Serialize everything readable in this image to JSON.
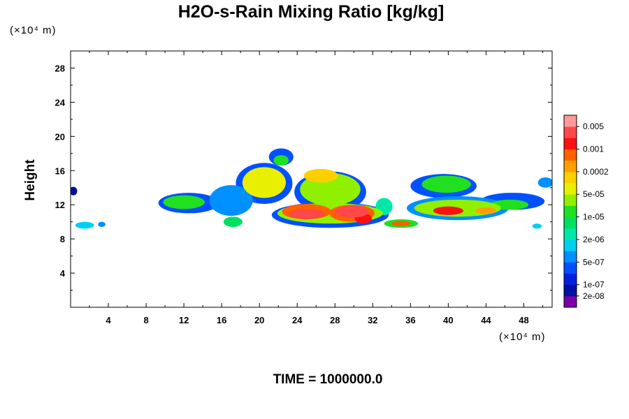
{
  "chart_data": {
    "type": "heatmap",
    "title": "H2O-s-Rain Mixing Ratio [kg/kg]",
    "ylabel": "Height",
    "xlabel": "",
    "x_unit": "(×10⁴ m)",
    "y_unit": "(×10⁴ m)",
    "xlim": [
      0,
      51
    ],
    "ylim": [
      0,
      30
    ],
    "xticks": [
      4,
      8,
      12,
      16,
      20,
      24,
      28,
      32,
      36,
      40,
      44,
      48
    ],
    "yticks": [
      4,
      8,
      12,
      16,
      20,
      24,
      28
    ],
    "grid": false,
    "footer": "TIME = 1000000.0",
    "colorbar": {
      "position": "right",
      "colors": [
        "#7a00a8",
        "#0010a0",
        "#0020e0",
        "#0050ff",
        "#0090ff",
        "#00d0f0",
        "#00e8a8",
        "#00e060",
        "#20e020",
        "#90f000",
        "#e8f000",
        "#ffd000",
        "#ffa000",
        "#ff6000",
        "#ff1010",
        "#ff4848",
        "#ff9898"
      ],
      "labels": [
        {
          "text": "2e-08",
          "level": 1
        },
        {
          "text": "1e-07",
          "level": 2
        },
        {
          "text": "5e-07",
          "level": 4
        },
        {
          "text": "2e-06",
          "level": 6
        },
        {
          "text": "1e-05",
          "level": 8
        },
        {
          "text": "5e-05",
          "level": 10
        },
        {
          "text": "0.0002",
          "level": 12
        },
        {
          "text": "0.001",
          "level": 14
        },
        {
          "text": "0.005",
          "level": 16
        }
      ]
    },
    "field_blobs": [
      {
        "x": 0.3,
        "y": 13.6,
        "rx": 0.4,
        "ry": 0.5,
        "level": 1
      },
      {
        "x": 1.5,
        "y": 9.6,
        "rx": 1.0,
        "ry": 0.4,
        "level": 5
      },
      {
        "x": 3.3,
        "y": 9.7,
        "rx": 0.4,
        "ry": 0.3,
        "level": 4
      },
      {
        "x": 12.5,
        "y": 12.2,
        "rx": 3.2,
        "ry": 1.2,
        "level": 3
      },
      {
        "x": 12.0,
        "y": 12.3,
        "rx": 2.2,
        "ry": 0.8,
        "level": 8
      },
      {
        "x": 17.0,
        "y": 12.5,
        "rx": 2.3,
        "ry": 1.8,
        "level": 4
      },
      {
        "x": 17.2,
        "y": 10.0,
        "rx": 1.0,
        "ry": 0.6,
        "level": 7
      },
      {
        "x": 20.5,
        "y": 14.5,
        "rx": 3.0,
        "ry": 2.4,
        "level": 3
      },
      {
        "x": 20.5,
        "y": 14.6,
        "rx": 2.3,
        "ry": 1.8,
        "level": 10
      },
      {
        "x": 22.3,
        "y": 17.6,
        "rx": 1.3,
        "ry": 1.0,
        "level": 3
      },
      {
        "x": 22.3,
        "y": 17.2,
        "rx": 0.8,
        "ry": 0.6,
        "level": 8
      },
      {
        "x": 27.5,
        "y": 13.5,
        "rx": 3.8,
        "ry": 2.4,
        "level": 3
      },
      {
        "x": 27.5,
        "y": 13.8,
        "rx": 3.2,
        "ry": 1.9,
        "level": 9
      },
      {
        "x": 26.5,
        "y": 15.4,
        "rx": 1.8,
        "ry": 0.8,
        "level": 11
      },
      {
        "x": 27.5,
        "y": 10.8,
        "rx": 6.2,
        "ry": 1.5,
        "level": 3
      },
      {
        "x": 27.5,
        "y": 11.0,
        "rx": 5.6,
        "ry": 1.2,
        "level": 9
      },
      {
        "x": 25.0,
        "y": 11.2,
        "rx": 2.6,
        "ry": 0.9,
        "level": 13
      },
      {
        "x": 29.8,
        "y": 11.0,
        "rx": 2.4,
        "ry": 1.0,
        "level": 13
      },
      {
        "x": 25.0,
        "y": 10.9,
        "rx": 1.9,
        "ry": 0.6,
        "level": 15
      },
      {
        "x": 29.8,
        "y": 11.2,
        "rx": 1.8,
        "ry": 0.7,
        "level": 15
      },
      {
        "x": 31.0,
        "y": 10.4,
        "rx": 0.9,
        "ry": 0.6,
        "level": 14
      },
      {
        "x": 33.2,
        "y": 11.8,
        "rx": 0.9,
        "ry": 1.0,
        "level": 6
      },
      {
        "x": 35.0,
        "y": 9.8,
        "rx": 1.8,
        "ry": 0.5,
        "level": 8
      },
      {
        "x": 35.0,
        "y": 9.8,
        "rx": 1.0,
        "ry": 0.3,
        "level": 13
      },
      {
        "x": 39.5,
        "y": 14.2,
        "rx": 3.5,
        "ry": 1.4,
        "level": 3
      },
      {
        "x": 39.8,
        "y": 14.4,
        "rx": 2.6,
        "ry": 1.0,
        "level": 8
      },
      {
        "x": 41.0,
        "y": 11.6,
        "rx": 5.4,
        "ry": 1.4,
        "level": 4
      },
      {
        "x": 41.0,
        "y": 11.6,
        "rx": 4.6,
        "ry": 1.0,
        "level": 9
      },
      {
        "x": 40.0,
        "y": 11.3,
        "rx": 1.6,
        "ry": 0.5,
        "level": 14
      },
      {
        "x": 44.0,
        "y": 11.3,
        "rx": 1.1,
        "ry": 0.4,
        "level": 12
      },
      {
        "x": 46.8,
        "y": 12.4,
        "rx": 3.4,
        "ry": 1.0,
        "level": 3
      },
      {
        "x": 46.5,
        "y": 12.0,
        "rx": 2.0,
        "ry": 0.6,
        "level": 8
      },
      {
        "x": 50.3,
        "y": 14.6,
        "rx": 0.8,
        "ry": 0.6,
        "level": 4
      },
      {
        "x": 49.4,
        "y": 9.5,
        "rx": 0.5,
        "ry": 0.3,
        "level": 5
      }
    ]
  }
}
